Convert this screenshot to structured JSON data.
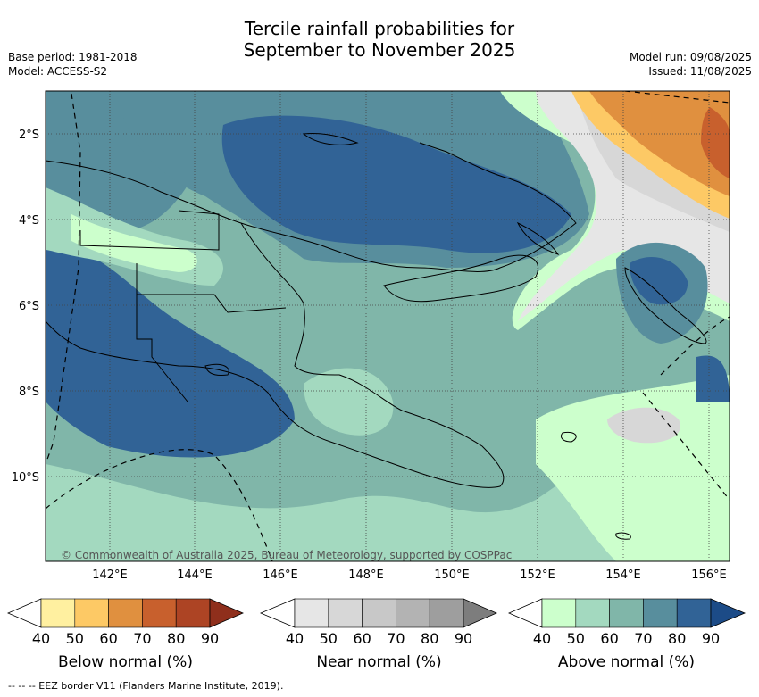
{
  "title_line1": "Tercile rainfall probabilities for",
  "title_line2": "September to November 2025",
  "base_period": "Base period: 1981-2018",
  "model": "Model: ACCESS-S2",
  "model_run": "Model run: 09/08/2025",
  "issued": "Issued: 11/08/2025",
  "lat_labels": [
    "2°S",
    "4°S",
    "6°S",
    "8°S",
    "10°S"
  ],
  "lon_labels": [
    "142°E",
    "144°E",
    "146°E",
    "148°E",
    "150°E",
    "152°E",
    "154°E",
    "156°E"
  ],
  "copyright": "© Commonwealth of Australia 2025, Bureau of Meteorology, supported by COSPPac",
  "colorbars": [
    {
      "label": "Below normal (%)",
      "ticks": [
        "40",
        "50",
        "60",
        "70",
        "80",
        "90"
      ],
      "colors": [
        "#fff0a0",
        "#fdc965",
        "#e0903f",
        "#c8602d",
        "#ad4424",
        "#8f2f1c"
      ]
    },
    {
      "label": "Near normal (%)",
      "ticks": [
        "40",
        "50",
        "60",
        "70",
        "80",
        "90"
      ],
      "colors": [
        "#e6e6e6",
        "#d7d7d7",
        "#c8c8c8",
        "#b3b3b3",
        "#9e9e9e",
        "#7d7d7d"
      ]
    },
    {
      "label": "Above normal (%)",
      "ticks": [
        "40",
        "50",
        "60",
        "70",
        "80",
        "90"
      ],
      "colors": [
        "#ccffcc",
        "#a3d9bf",
        "#80b6a9",
        "#588e9d",
        "#316396",
        "#1c4b87"
      ]
    }
  ],
  "footer": "-- -- -- EEZ border V11 (Flanders Marine Institute, 2019)."
}
